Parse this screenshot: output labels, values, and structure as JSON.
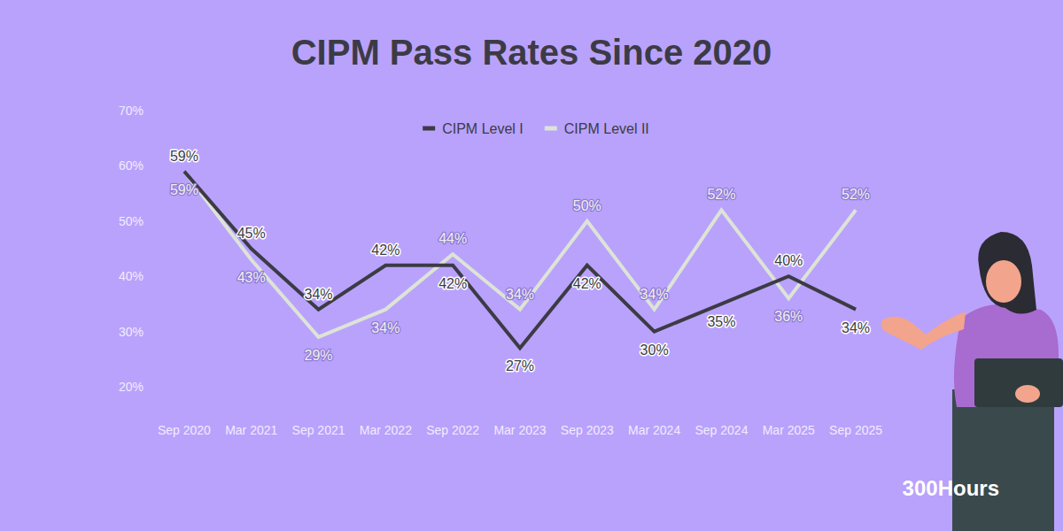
{
  "chart_data": {
    "type": "line",
    "title": "CIPM Pass Rates Since 2020",
    "categories": [
      "Sep 2020",
      "Mar 2021",
      "Sep 2021",
      "Mar 2022",
      "Sep 2022",
      "Mar 2023",
      "Sep 2023",
      "Mar 2024",
      "Sep 2024",
      "Mar 2025",
      "Sep 2025"
    ],
    "series": [
      {
        "name": "CIPM Level I",
        "color": "#3c3b45",
        "values": [
          59,
          45,
          34,
          42,
          42,
          27,
          42,
          30,
          35,
          40,
          34
        ],
        "value_labels": [
          "59%",
          "45%",
          "34%",
          "42%",
          "42%",
          "27%",
          "42%",
          "30%",
          "35%",
          "40%",
          "34%"
        ]
      },
      {
        "name": "CIPM Level II",
        "color": "#dde4d6",
        "values": [
          59,
          43,
          29,
          34,
          44,
          34,
          50,
          34,
          52,
          36,
          52
        ],
        "value_labels": [
          "59%",
          "43%",
          "29%",
          "34%",
          "44%",
          "34%",
          "50%",
          "34%",
          "52%",
          "36%",
          "52%"
        ]
      }
    ],
    "ylim": [
      20,
      70
    ],
    "yticks": [
      {
        "value": 20,
        "label": "20%"
      },
      {
        "value": 30,
        "label": "30%"
      },
      {
        "value": 40,
        "label": "40%"
      },
      {
        "value": 50,
        "label": "50%"
      },
      {
        "value": 60,
        "label": "60%"
      },
      {
        "value": 70,
        "label": "70%"
      }
    ],
    "grid": false,
    "legend": "top",
    "data_labels": true,
    "annotation": "300Hours"
  }
}
